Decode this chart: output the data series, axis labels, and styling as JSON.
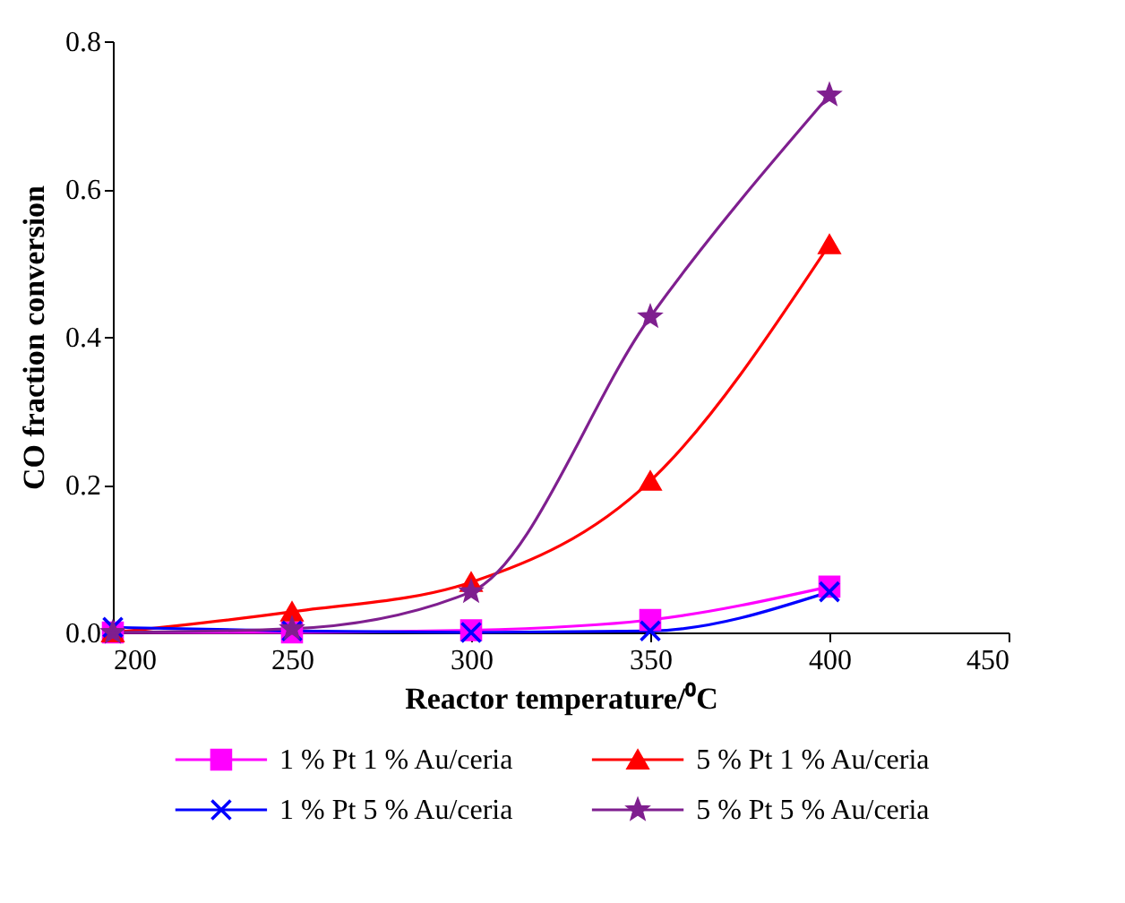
{
  "chart_data": {
    "type": "line",
    "xlabel": "Reactor temperature/⁰C",
    "ylabel": "CO fraction conversion",
    "x": [
      200,
      250,
      300,
      350,
      400
    ],
    "series": [
      {
        "name": "1 % Pt 1 % Au/ceria",
        "color": "#ff00ff",
        "marker": "square",
        "values": [
          0.0,
          0.0,
          0.003,
          0.017,
          0.062
        ]
      },
      {
        "name": "5 % Pt 1 % Au/ceria",
        "color": "#ff0000",
        "marker": "triangle",
        "values": [
          0.0,
          0.028,
          0.068,
          0.205,
          0.525
        ]
      },
      {
        "name": "1 % Pt 5 % Au/ceria",
        "color": "#0000ff",
        "marker": "cross",
        "values": [
          0.007,
          0.002,
          0.0,
          0.002,
          0.055
        ]
      },
      {
        "name": "5 % Pt 5 % Au/ceria",
        "color": "#7f1f8f",
        "marker": "star",
        "values": [
          0.0,
          0.005,
          0.055,
          0.427,
          0.727
        ]
      }
    ],
    "xlim": [
      200,
      450
    ],
    "xticks": [
      200,
      250,
      300,
      350,
      400,
      450
    ],
    "ylim": [
      0,
      0.8
    ],
    "yticks": [
      {
        "value": 0,
        "label": "0.0"
      },
      0.2,
      0.4,
      0.6,
      0.8
    ],
    "grid": false,
    "legend": "bottom",
    "line_style": "solid"
  }
}
